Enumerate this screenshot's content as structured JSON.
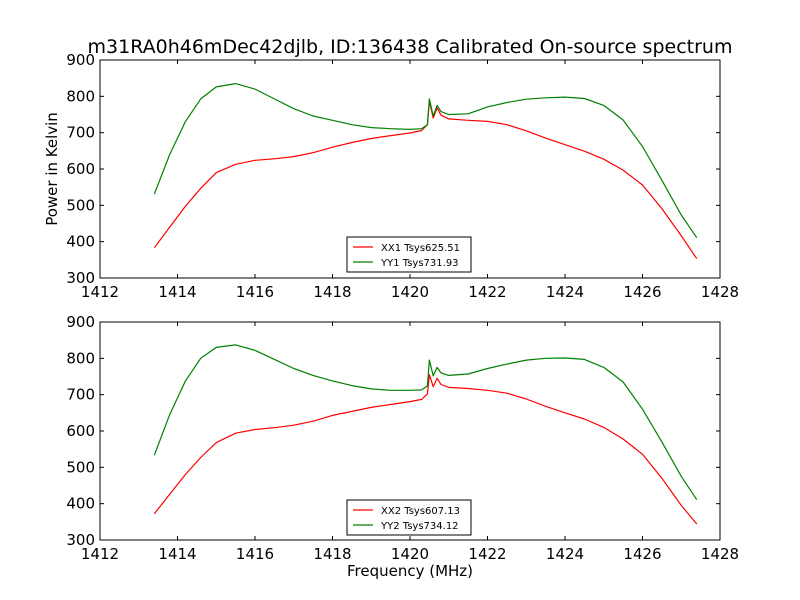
{
  "figure": {
    "title": "m31RA0h46mDec42djlb, ID:136438 Calibrated On-source spectrum",
    "ylabel": "Power in Kelvin",
    "xlabel": "Frequency (MHz)"
  },
  "chart_data": [
    {
      "type": "line",
      "title": "m31RA0h46mDec42djlb, ID:136438 Calibrated On-source spectrum",
      "xlabel": "",
      "ylabel": "Power in Kelvin",
      "xlim": [
        1412,
        1428
      ],
      "ylim": [
        300,
        900
      ],
      "xticks": [
        1412,
        1414,
        1416,
        1418,
        1420,
        1422,
        1424,
        1426,
        1428
      ],
      "yticks": [
        300,
        400,
        500,
        600,
        700,
        800,
        900
      ],
      "grid": false,
      "legend": "lower-center",
      "series": [
        {
          "name": "XX1 Tsys625.51",
          "color": "#ff0000",
          "x": [
            1413.4,
            1413.8,
            1414.2,
            1414.6,
            1415.0,
            1415.5,
            1416.0,
            1416.5,
            1417.0,
            1417.5,
            1418.0,
            1418.5,
            1419.0,
            1419.5,
            1420.0,
            1420.3,
            1420.45,
            1420.5,
            1420.6,
            1420.7,
            1420.8,
            1421.0,
            1421.5,
            1422.0,
            1422.5,
            1423.0,
            1423.5,
            1424.0,
            1424.5,
            1425.0,
            1425.5,
            1426.0,
            1426.5,
            1427.0,
            1427.4
          ],
          "y": [
            383,
            440,
            497,
            547,
            590,
            613,
            624,
            628,
            634,
            645,
            660,
            673,
            684,
            692,
            699,
            706,
            722,
            787,
            740,
            768,
            748,
            738,
            734,
            731,
            722,
            705,
            685,
            667,
            649,
            627,
            597,
            556,
            491,
            416,
            353
          ]
        },
        {
          "name": "YY1 Tsys731.93",
          "color": "#008000",
          "x": [
            1413.4,
            1413.8,
            1414.2,
            1414.6,
            1415.0,
            1415.5,
            1416.0,
            1416.5,
            1417.0,
            1417.5,
            1418.0,
            1418.5,
            1419.0,
            1419.5,
            1420.0,
            1420.3,
            1420.45,
            1420.5,
            1420.6,
            1420.7,
            1420.8,
            1421.0,
            1421.5,
            1422.0,
            1422.5,
            1423.0,
            1423.5,
            1424.0,
            1424.5,
            1425.0,
            1425.5,
            1426.0,
            1426.5,
            1427.0,
            1427.4
          ],
          "y": [
            531,
            640,
            730,
            793,
            826,
            835,
            820,
            793,
            766,
            746,
            734,
            722,
            714,
            711,
            709,
            711,
            722,
            793,
            746,
            775,
            758,
            750,
            752,
            771,
            783,
            792,
            796,
            798,
            794,
            775,
            735,
            662,
            569,
            473,
            411
          ]
        }
      ]
    },
    {
      "type": "line",
      "title": "",
      "xlabel": "Frequency (MHz)",
      "ylabel": "",
      "xlim": [
        1412,
        1428
      ],
      "ylim": [
        300,
        900
      ],
      "xticks": [
        1412,
        1414,
        1416,
        1418,
        1420,
        1422,
        1424,
        1426,
        1428
      ],
      "yticks": [
        300,
        400,
        500,
        600,
        700,
        800,
        900
      ],
      "grid": false,
      "legend": "lower-center",
      "series": [
        {
          "name": "XX2 Tsys607.13",
          "color": "#ff0000",
          "x": [
            1413.4,
            1413.8,
            1414.2,
            1414.6,
            1415.0,
            1415.5,
            1416.0,
            1416.5,
            1417.0,
            1417.5,
            1418.0,
            1418.5,
            1419.0,
            1419.5,
            1420.0,
            1420.3,
            1420.45,
            1420.5,
            1420.6,
            1420.7,
            1420.8,
            1421.0,
            1421.5,
            1422.0,
            1422.5,
            1423.0,
            1423.5,
            1424.0,
            1424.5,
            1425.0,
            1425.5,
            1426.0,
            1426.5,
            1427.0,
            1427.4
          ],
          "y": [
            372,
            426,
            480,
            527,
            568,
            594,
            604,
            609,
            616,
            627,
            643,
            654,
            665,
            673,
            681,
            687,
            702,
            755,
            722,
            745,
            728,
            720,
            717,
            712,
            704,
            688,
            668,
            650,
            633,
            610,
            578,
            536,
            470,
            395,
            344
          ]
        },
        {
          "name": "YY2 Tsys734.12",
          "color": "#008000",
          "x": [
            1413.4,
            1413.8,
            1414.2,
            1414.6,
            1415.0,
            1415.5,
            1416.0,
            1416.5,
            1417.0,
            1417.5,
            1418.0,
            1418.5,
            1419.0,
            1419.5,
            1420.0,
            1420.3,
            1420.45,
            1420.5,
            1420.6,
            1420.7,
            1420.8,
            1421.0,
            1421.5,
            1422.0,
            1422.5,
            1423.0,
            1423.5,
            1424.0,
            1424.5,
            1425.0,
            1425.5,
            1426.0,
            1426.5,
            1427.0,
            1427.4
          ],
          "y": [
            533,
            645,
            737,
            800,
            830,
            837,
            822,
            797,
            772,
            753,
            738,
            725,
            716,
            712,
            712,
            713,
            724,
            795,
            752,
            775,
            760,
            753,
            757,
            772,
            784,
            795,
            800,
            801,
            797,
            775,
            735,
            660,
            570,
            475,
            411
          ]
        }
      ]
    }
  ]
}
